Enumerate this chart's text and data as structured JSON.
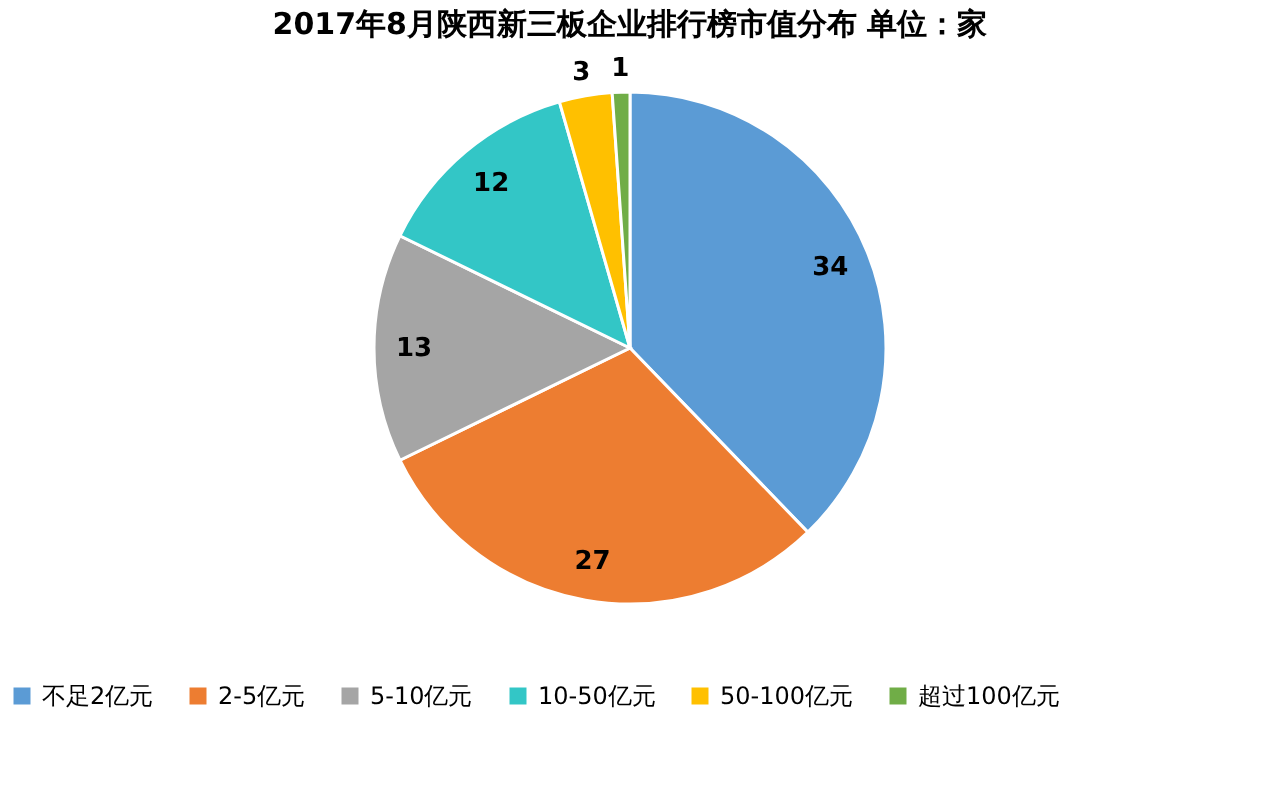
{
  "chart_data": {
    "type": "pie",
    "title": "2017年8月陕西新三板企业排行榜市值分布 单位：家",
    "categories": [
      "不足2亿元",
      "2-5亿元",
      "5-10亿元",
      "10-50亿元",
      "50-100亿元",
      "超过100亿元"
    ],
    "values": [
      34,
      27,
      13,
      12,
      3,
      1
    ],
    "colors": [
      "#5b9bd5",
      "#ed7d31",
      "#a5a5a5",
      "#33c6c6",
      "#ffc000",
      "#70ad47"
    ],
    "data_labels": true,
    "legend": "bottom"
  }
}
